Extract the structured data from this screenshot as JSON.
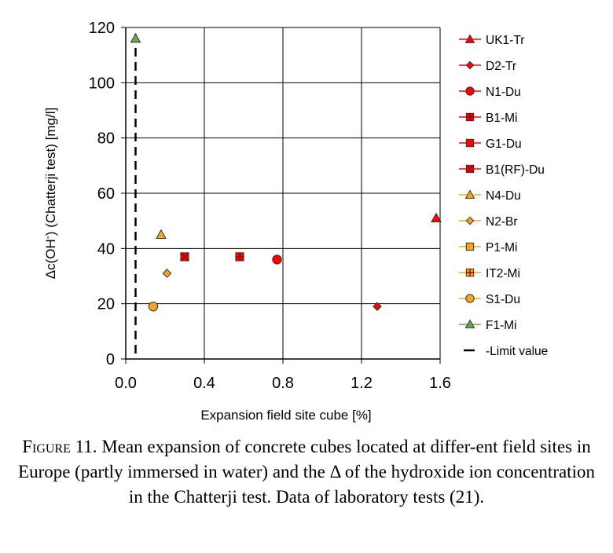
{
  "chart_data": {
    "type": "scatter",
    "title": "",
    "xlabel": "Expansion field site cube [%]",
    "ylabel_parts": [
      "Δc(OH",
      "-",
      ") (Chatterji test) [mg/l]"
    ],
    "xlim": [
      0,
      1.6
    ],
    "ylim": [
      0,
      120
    ],
    "xticks": [
      "0.0",
      "0.4",
      "0.8",
      "1.2",
      "1.6"
    ],
    "yticks": [
      "0",
      "20",
      "40",
      "60",
      "80",
      "100",
      "120"
    ],
    "grid": true,
    "legend_position": "right",
    "series": [
      {
        "name": "UK1-Tr",
        "marker": "triangle",
        "color": "#ff0000",
        "points": [
          [
            1.58,
            51
          ]
        ]
      },
      {
        "name": "D2-Tr",
        "marker": "diamond",
        "color": "#ff0000",
        "points": [
          [
            1.28,
            19
          ]
        ]
      },
      {
        "name": "N1-Du",
        "marker": "circle",
        "color": "#ff0000",
        "points": [
          [
            0.77,
            36
          ]
        ]
      },
      {
        "name": "B1-Mi",
        "marker": "plus",
        "color": "#ff0000",
        "points": [
          [
            0.58,
            37
          ]
        ]
      },
      {
        "name": "G1-Du",
        "marker": "square",
        "color": "#ff0000",
        "points": []
      },
      {
        "name": "B1(RF)-Du",
        "marker": "x",
        "color": "#ff0000",
        "points": [
          [
            0.3,
            37
          ]
        ]
      },
      {
        "name": "N4-Du",
        "marker": "triangle",
        "color": "#f5a623",
        "points": [
          [
            0.18,
            45
          ]
        ]
      },
      {
        "name": "N2-Br",
        "marker": "diamond",
        "color": "#f5a623",
        "points": [
          [
            0.21,
            31
          ]
        ]
      },
      {
        "name": "P1-Mi",
        "marker": "square",
        "color": "#f5a623",
        "points": []
      },
      {
        "name": "IT2-Mi",
        "marker": "plus",
        "color": "#f5a623",
        "points": []
      },
      {
        "name": "S1-Du",
        "marker": "circle",
        "color": "#f5a623",
        "points": [
          [
            0.14,
            19
          ]
        ]
      },
      {
        "name": "F1-Mi",
        "marker": "triangle",
        "color": "#6aa84f",
        "points": [
          [
            0.05,
            116
          ]
        ]
      }
    ],
    "limit_line": {
      "name": "-Limit value",
      "x": 0.05,
      "style": "dashed",
      "color": "#000000"
    }
  },
  "caption": {
    "label": "Figure 11.",
    "text": "Mean expansion of concrete cubes located at differ-ent field sites in Europe (partly immersed in water) and the Δ of the hydroxide ion concentration in the Chatterji test. Data of laboratory tests (21)."
  }
}
